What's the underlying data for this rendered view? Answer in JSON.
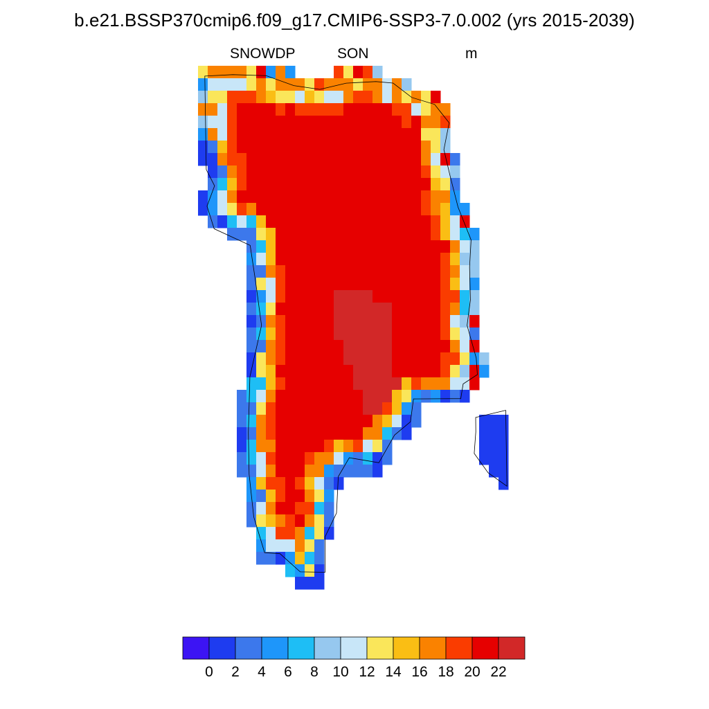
{
  "header": {
    "title": "b.e21.BSSP370cmip6.f09_g17.CMIP6-SSP3-7.0.002 (yrs 2015-2039)",
    "variable": "SNOWDP",
    "season": "SON",
    "units": "m"
  },
  "map": {
    "region": "Greenland",
    "field": "snow depth",
    "coastline_color": "#000000",
    "missing_color": "#ffffff"
  },
  "colorbar": {
    "colors": [
      "#3c14f4",
      "#1e3cf0",
      "#3c78ec",
      "#1e96fa",
      "#1ebef5",
      "#96c8ef",
      "#c8e6f8",
      "#fae65a",
      "#fabe14",
      "#fa8200",
      "#fa3c00",
      "#e60000",
      "#d22828"
    ],
    "labels": [
      "0",
      "2",
      "4",
      "6",
      "8",
      "10",
      "12",
      "14",
      "16",
      "18",
      "20",
      "22"
    ]
  }
}
